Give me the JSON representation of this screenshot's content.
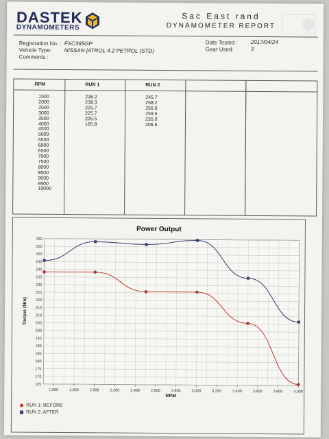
{
  "header": {
    "brand_line1": "DASTEK",
    "brand_line2": "DYNAMOMETERS",
    "company": "Sac East rand",
    "report_title": "DYNAMOMETER REPORT"
  },
  "details": {
    "registration_label": "Registration No. :",
    "registration_value": "FXC365GP",
    "vehicle_label": "Vehicle Type:",
    "vehicle_value": "NISSAN [ATROL 4.2 PETROL (STD)",
    "comments_label": "Comments :",
    "date_label": "Date Tested :",
    "date_value": "2017/04/24",
    "gear_label": "Gear Used:",
    "gear_value": "3"
  },
  "table": {
    "headers": [
      "RPM",
      "RUN 1",
      "RUN 2"
    ],
    "rpm": [
      "1500",
      "2000",
      "2500",
      "3000",
      "3500",
      "4000",
      "4500",
      "5000",
      "5500",
      "6000",
      "6500",
      "7000",
      "7500",
      "8000",
      "8500",
      "9000",
      "9500",
      "10000"
    ],
    "run1": [
      "238.2",
      "238.3",
      "225.7",
      "225.7",
      "205.5",
      "165.8"
    ],
    "run2": [
      "245.7",
      "258.2",
      "256.6",
      "259.5",
      "235.0",
      "206.6"
    ]
  },
  "chart_data": {
    "type": "line",
    "title": "Power Output",
    "xlabel": "RPM",
    "ylabel": "Torque (Nm)",
    "x": [
      1500,
      2000,
      2500,
      3000,
      3500,
      4000
    ],
    "xlim": [
      1500,
      4000
    ],
    "ylim": [
      165,
      260
    ],
    "xticks": [
      1600,
      1800,
      2000,
      2200,
      2400,
      2600,
      2800,
      3000,
      3200,
      3400,
      3600,
      3800,
      4000
    ],
    "xtick_labels": [
      "1,600",
      "1,800",
      "2,000",
      "2,200",
      "2,400",
      "2,600",
      "2,800",
      "3,000",
      "3,200",
      "3,400",
      "3,600",
      "3,800",
      "4,000"
    ],
    "yticks": [
      165,
      170,
      175,
      180,
      185,
      190,
      195,
      200,
      205,
      210,
      215,
      220,
      225,
      230,
      235,
      240,
      245,
      250,
      255,
      260
    ],
    "grid": true,
    "legend_position": "bottom-left",
    "series": [
      {
        "name": "RUN 1: BEFORE",
        "color": "#c0392b",
        "values": [
          238.2,
          238.3,
          225.7,
          225.7,
          205.5,
          165.8
        ]
      },
      {
        "name": "RUN 2: AFTER",
        "color": "#2e3a6b",
        "values": [
          245.7,
          258.2,
          256.6,
          259.5,
          235.0,
          206.6
        ]
      }
    ]
  }
}
